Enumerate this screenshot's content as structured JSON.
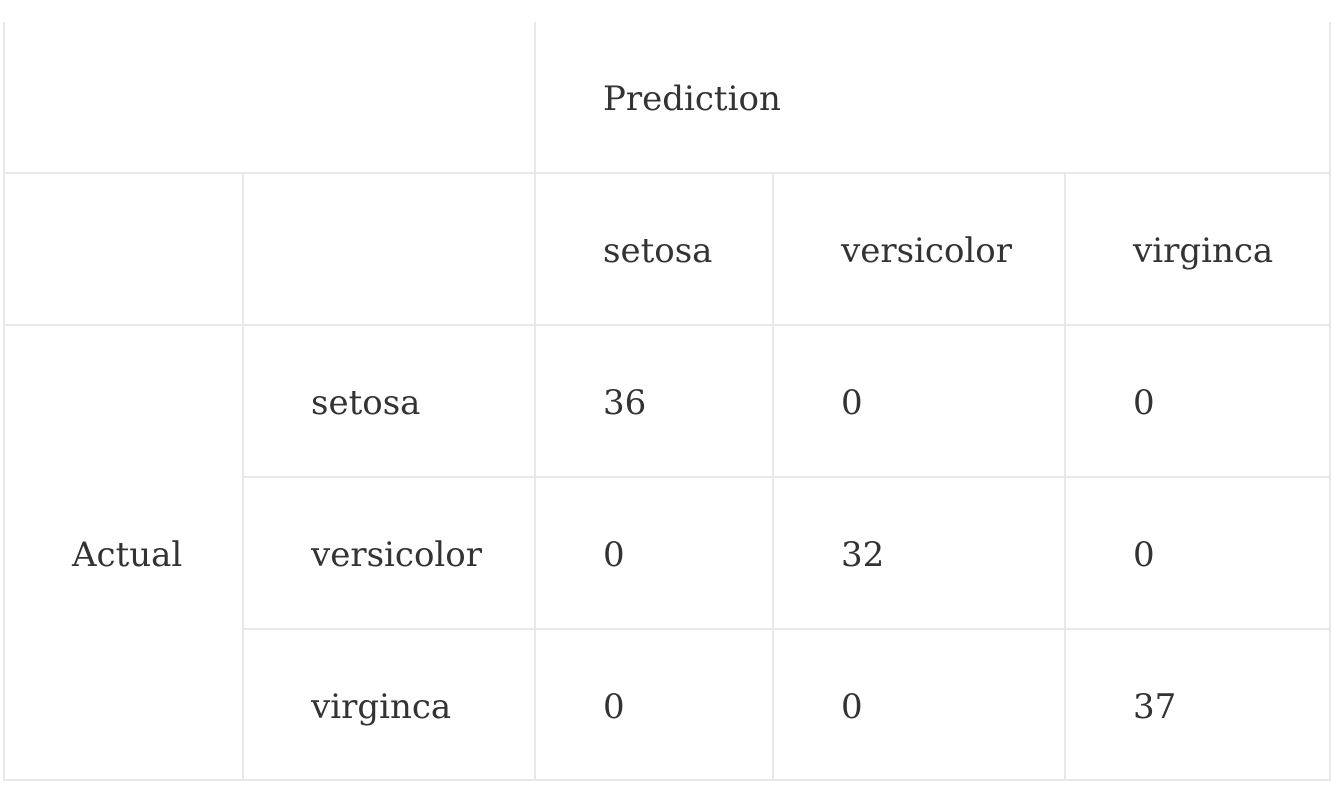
{
  "matrix": {
    "top_header": "Prediction",
    "side_header": "Actual",
    "predicted_classes": [
      "setosa",
      "versicolor",
      "virginca"
    ],
    "actual_classes": [
      "setosa",
      "versicolor",
      "virginca"
    ],
    "values": [
      [
        36,
        0,
        0
      ],
      [
        0,
        32,
        0
      ],
      [
        0,
        0,
        37
      ]
    ]
  }
}
